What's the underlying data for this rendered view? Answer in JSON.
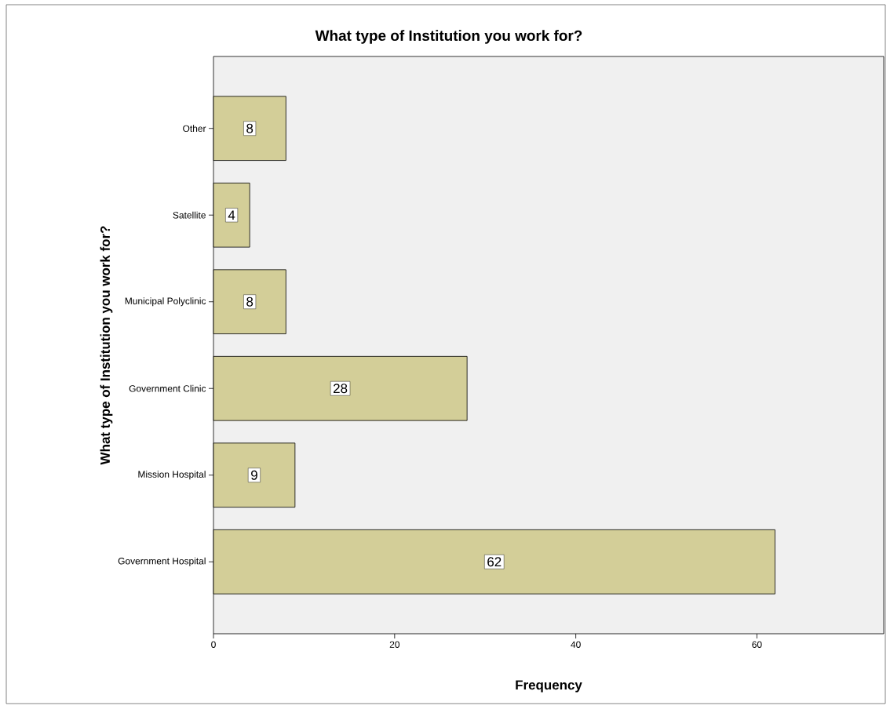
{
  "chart_data": {
    "type": "bar",
    "orientation": "horizontal",
    "title": "What type of Institution you work for?",
    "xlabel": "Frequency",
    "ylabel": "What type of Institution you work for?",
    "categories": [
      "Other",
      "Satellite",
      "Municipal Polyclinic",
      "Government Clinic",
      "Mission Hospital",
      "Government Hospital"
    ],
    "values": [
      8,
      4,
      8,
      28,
      9,
      62
    ],
    "color": "#d3ce98",
    "data_labels": true,
    "xlim": [
      0,
      74
    ],
    "xticks": [
      0,
      20,
      40,
      60
    ],
    "grid": false
  }
}
